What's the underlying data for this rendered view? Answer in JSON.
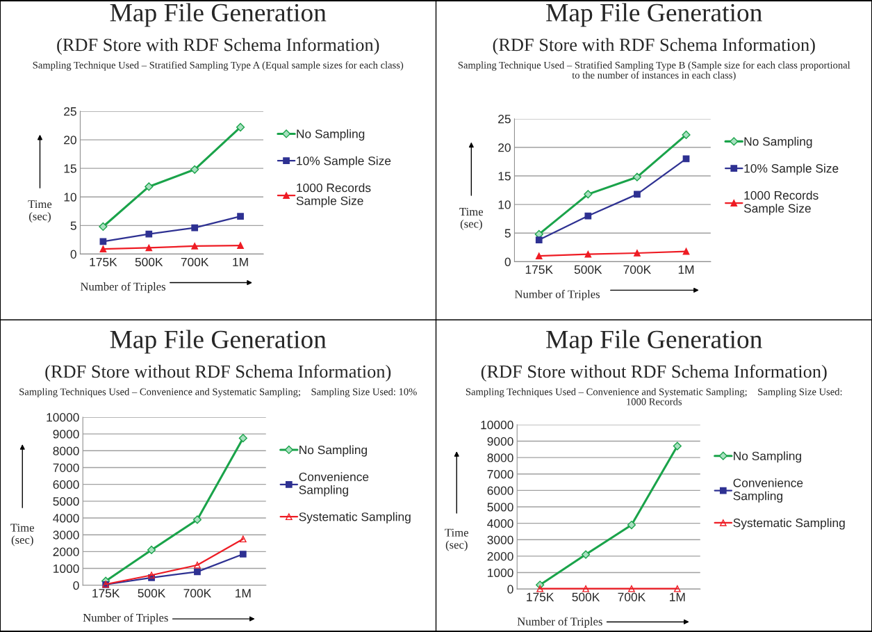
{
  "chart_data": [
    {
      "type": "line",
      "title": "Map File Generation",
      "subtitle": "(RDF Store with RDF Schema Information)",
      "annotations": [
        "Sampling Technique Used – Stratified Sampling Type A (Equal sample sizes for each class)"
      ],
      "xlabel": "Number of Triples",
      "ylabel": "Time\n(sec)",
      "categories": [
        "175K",
        "500K",
        "700K",
        "1M"
      ],
      "ylim": [
        0,
        25
      ],
      "yticks": [
        0,
        5,
        10,
        15,
        20,
        25
      ],
      "grid": "y",
      "legend": "right",
      "series": [
        {
          "name": "No Sampling",
          "color": "#1aa34a",
          "marker": "diamond",
          "values": [
            4.8,
            11.8,
            14.8,
            22.2
          ]
        },
        {
          "name": "10% Sample Size",
          "color": "#2e3192",
          "marker": "square",
          "values": [
            2.2,
            3.5,
            4.6,
            6.6
          ]
        },
        {
          "name": "1000 Records\nSample Size",
          "color": "#ee1c24",
          "marker": "triangle",
          "values": [
            0.9,
            1.1,
            1.4,
            1.5
          ]
        }
      ]
    },
    {
      "type": "line",
      "title": "Map File Generation",
      "subtitle": "(RDF Store with RDF Schema Information)",
      "annotations": [
        "Sampling Technique Used – Stratified Sampling Type B (Sample size for each class proportional\nto the number of instances in each class)"
      ],
      "xlabel": "Number of Triples",
      "ylabel": "Time\n(sec)",
      "categories": [
        "175K",
        "500K",
        "700K",
        "1M"
      ],
      "ylim": [
        0,
        25
      ],
      "yticks": [
        0,
        5,
        10,
        15,
        20,
        25
      ],
      "grid": "y",
      "legend": "right",
      "series": [
        {
          "name": "No Sampling",
          "color": "#1aa34a",
          "marker": "diamond",
          "values": [
            4.8,
            11.8,
            14.8,
            22.2
          ]
        },
        {
          "name": "10% Sample Size",
          "color": "#2e3192",
          "marker": "square",
          "values": [
            3.8,
            8.0,
            11.8,
            18.0
          ]
        },
        {
          "name": "1000 Records\nSample Size",
          "color": "#ee1c24",
          "marker": "triangle",
          "values": [
            1.0,
            1.3,
            1.5,
            1.8
          ]
        }
      ]
    },
    {
      "type": "line",
      "title": "Map File Generation",
      "subtitle": "(RDF Store without RDF Schema Information)",
      "annotations": [
        "Sampling Techniques Used – Convenience and Systematic Sampling;    Sampling Size Used: 10%"
      ],
      "xlabel": "Number of Triples",
      "ylabel": "Time\n(sec)",
      "categories": [
        "175K",
        "500K",
        "700K",
        "1M"
      ],
      "ylim": [
        0,
        10000
      ],
      "yticks": [
        0,
        1000,
        2000,
        3000,
        4000,
        5000,
        6000,
        7000,
        8000,
        9000,
        10000
      ],
      "grid": "y",
      "legend": "right",
      "series": [
        {
          "name": "No Sampling",
          "color": "#1aa34a",
          "marker": "diamond",
          "values": [
            250,
            2100,
            3900,
            8750
          ]
        },
        {
          "name": "Convenience\nSampling",
          "color": "#2e3192",
          "marker": "square",
          "values": [
            40,
            450,
            800,
            1850
          ]
        },
        {
          "name": "Systematic Sampling",
          "color": "#ee1c24",
          "marker": "triangle",
          "values": [
            60,
            600,
            1200,
            2750
          ]
        }
      ]
    },
    {
      "type": "line",
      "title": "Map File Generation",
      "subtitle": "(RDF Store without RDF Schema Information)",
      "annotations": [
        "Sampling Techniques Used – Convenience and Systematic Sampling;    Sampling Size Used:\n1000 Records"
      ],
      "xlabel": "Number of Triples",
      "ylabel": "Time\n(sec)",
      "categories": [
        "175K",
        "500K",
        "700K",
        "1M"
      ],
      "ylim": [
        0,
        10000
      ],
      "yticks": [
        0,
        1000,
        2000,
        3000,
        4000,
        5000,
        6000,
        7000,
        8000,
        9000,
        10000
      ],
      "grid": "y",
      "legend": "right",
      "series": [
        {
          "name": "No Sampling",
          "color": "#1aa34a",
          "marker": "diamond",
          "values": [
            250,
            2100,
            3900,
            8700
          ]
        },
        {
          "name": "Convenience\nSampling",
          "color": "#2e3192",
          "marker": "square",
          "values": [
            null,
            null,
            null,
            null
          ]
        },
        {
          "name": "Systematic Sampling",
          "color": "#ee1c24",
          "marker": "triangle",
          "values": [
            20,
            20,
            20,
            20
          ]
        }
      ]
    }
  ]
}
